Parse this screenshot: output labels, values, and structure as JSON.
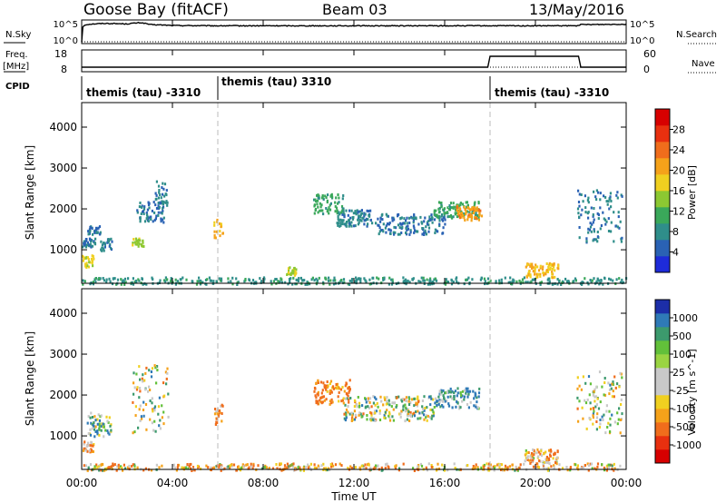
{
  "header": {
    "station": "Goose Bay (fitACF)",
    "beam": "Beam 03",
    "date": "13/May/2016"
  },
  "panels": {
    "nsky_label": "N.Sky",
    "nsearch_label": "N.Search",
    "nsky_ticks": [
      "10^5",
      "10^0"
    ],
    "nsearch_ticks": [
      "10^5",
      "10^0"
    ],
    "freq_label": "Freq.",
    "freq_unit": "[MHz]",
    "freq_ticks": [
      "18",
      "8"
    ],
    "nave_label": "Nave",
    "nave_ticks": [
      "60",
      "0"
    ],
    "cpid_label": "CPID",
    "cpid_segments": [
      {
        "text": "themis (tau) -3310",
        "start_hour": 0
      },
      {
        "text": "themis (tau) 3310",
        "start_hour": 6
      },
      {
        "text": "themis (tau) -3310",
        "start_hour": 18
      }
    ]
  },
  "axes": {
    "ylabel": "Slant Range [km]",
    "xlabel": "Time UT",
    "yticks": [
      1000,
      2000,
      3000,
      4000
    ],
    "xticks": [
      "00:00",
      "04:00",
      "08:00",
      "12:00",
      "16:00",
      "20:00",
      "00:00"
    ]
  },
  "colorbars": {
    "power": {
      "label": "Power [dB]",
      "ticks": [
        "4",
        "8",
        "12",
        "16",
        "20",
        "24",
        "28"
      ],
      "colors": [
        "#1e2bd9",
        "#2a62b4",
        "#2f8e8a",
        "#3aa85a",
        "#8cc832",
        "#f0d020",
        "#f5a21a",
        "#f06d1c",
        "#e8300f",
        "#d70000"
      ]
    },
    "velocity": {
      "label": "Velocity [m s^-1]",
      "ticks": [
        "1000",
        "500",
        "100",
        "25",
        "-25",
        "-100",
        "-500",
        "-1000"
      ],
      "colors": [
        "#1c2ea8",
        "#2f7ab7",
        "#3c9a6d",
        "#62c03a",
        "#9ad442",
        "#c9c9c9",
        "#c9c9c9",
        "#f0d020",
        "#f5a21a",
        "#f06d1c",
        "#e8300f",
        "#d70000"
      ]
    }
  },
  "chart_data": [
    {
      "type": "line",
      "title": "N.Sky / N.Search",
      "x_range_hours": [
        0,
        24
      ],
      "y_scale": "log",
      "y_range": [
        1,
        100000
      ],
      "series": [
        {
          "name": "N.Sky",
          "x": [
            0.0,
            0.2,
            0.5,
            1.0,
            1.5,
            2.0,
            2.6,
            2.8,
            3.0,
            4.0,
            6.0,
            10.0,
            14.0,
            18.0,
            21.8,
            22.0,
            24.0
          ],
          "y": [
            1,
            20000,
            30000,
            40000,
            35000,
            30000,
            60000,
            40000,
            20000,
            12000,
            10000,
            10000,
            10000,
            10000,
            10000,
            20000,
            25000
          ]
        },
        {
          "name": "N.Search",
          "x": [
            0,
            24
          ],
          "y": [
            1,
            1
          ]
        }
      ]
    },
    {
      "type": "line",
      "title": "Freq. / Nave",
      "x_range_hours": [
        0,
        24
      ],
      "series": [
        {
          "name": "Freq.",
          "y_range": [
            8,
            18
          ],
          "x": [
            0,
            17.9,
            18.0,
            21.9,
            22.0,
            24.0
          ],
          "y": [
            10,
            10,
            16,
            16,
            10,
            10
          ]
        },
        {
          "name": "Nave",
          "y_range": [
            0,
            60
          ],
          "x": [
            0,
            24
          ],
          "y": [
            12,
            12
          ]
        }
      ]
    },
    {
      "type": "heatmap",
      "title": "Power [dB]",
      "x_range_hours": [
        0,
        24
      ],
      "y_range_km": [
        180,
        4600
      ],
      "value_range": [
        0,
        30
      ],
      "regions": [
        {
          "t": [
            0.0,
            0.6
          ],
          "r": [
            1100,
            1300
          ],
          "v": 6
        },
        {
          "t": [
            0.0,
            0.5
          ],
          "r": [
            600,
            900
          ],
          "v": 16
        },
        {
          "t": [
            0.2,
            0.8
          ],
          "r": [
            1400,
            1600
          ],
          "v": 6
        },
        {
          "t": [
            0.8,
            1.3
          ],
          "r": [
            1000,
            1300
          ],
          "v": 7
        },
        {
          "t": [
            2.2,
            2.7
          ],
          "r": [
            1050,
            1300
          ],
          "v": 14
        },
        {
          "t": [
            2.4,
            3.6
          ],
          "r": [
            1700,
            2200
          ],
          "v": 6
        },
        {
          "t": [
            3.2,
            3.8
          ],
          "r": [
            2100,
            2700
          ],
          "v": 7
        },
        {
          "t": [
            5.8,
            6.2
          ],
          "r": [
            1300,
            1800
          ],
          "v": 18
        },
        {
          "t": [
            9.0,
            9.5
          ],
          "r": [
            400,
            600
          ],
          "v": 15
        },
        {
          "t": [
            10.2,
            11.5
          ],
          "r": [
            1900,
            2400
          ],
          "v": 10
        },
        {
          "t": [
            11.2,
            13.0
          ],
          "r": [
            1600,
            2000
          ],
          "v": 7
        },
        {
          "t": [
            13.0,
            16.0
          ],
          "r": [
            1400,
            1900
          ],
          "v": 6
        },
        {
          "t": [
            15.5,
            17.5
          ],
          "r": [
            1800,
            2200
          ],
          "v": 10
        },
        {
          "t": [
            16.5,
            17.6
          ],
          "r": [
            1750,
            2100
          ],
          "v": 20
        },
        {
          "t": [
            19.5,
            21.0
          ],
          "r": [
            350,
            700
          ],
          "v": 18
        },
        {
          "t": [
            21.8,
            23.8
          ],
          "r": [
            1200,
            2500
          ],
          "v": 6
        },
        {
          "t": [
            0.0,
            24.0
          ],
          "r": [
            180,
            350
          ],
          "v": 8
        }
      ]
    },
    {
      "type": "heatmap",
      "title": "Velocity [m s^-1]",
      "x_range_hours": [
        0,
        24
      ],
      "y_range_km": [
        180,
        4600
      ],
      "value_range": [
        -1000,
        1000
      ],
      "regions": [
        {
          "t": [
            0.0,
            0.5
          ],
          "r": [
            600,
            900
          ],
          "v": -100
        },
        {
          "t": [
            0.2,
            1.3
          ],
          "r": [
            1000,
            1600
          ],
          "v": 50
        },
        {
          "t": [
            2.2,
            3.8
          ],
          "r": [
            1100,
            2800
          ],
          "v": 0
        },
        {
          "t": [
            5.8,
            6.2
          ],
          "r": [
            1300,
            1800
          ],
          "v": -100
        },
        {
          "t": [
            10.2,
            11.8
          ],
          "r": [
            1800,
            2400
          ],
          "v": -150
        },
        {
          "t": [
            11.5,
            15.5
          ],
          "r": [
            1400,
            2000
          ],
          "v": 0
        },
        {
          "t": [
            15.5,
            17.5
          ],
          "r": [
            1700,
            2200
          ],
          "v": 100
        },
        {
          "t": [
            19.5,
            21.0
          ],
          "r": [
            350,
            700
          ],
          "v": -80
        },
        {
          "t": [
            21.8,
            23.8
          ],
          "r": [
            1100,
            2600
          ],
          "v": 0
        },
        {
          "t": [
            0.0,
            24.0
          ],
          "r": [
            180,
            350
          ],
          "v": -60
        }
      ]
    }
  ]
}
